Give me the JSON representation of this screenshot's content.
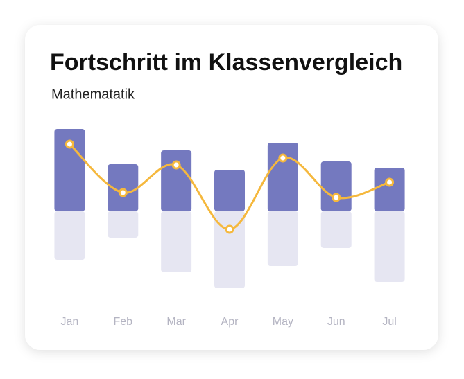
{
  "chart_data": {
    "type": "bar",
    "title": "Fortschritt im Klassenvergleich",
    "subtitle": "Mathematatik",
    "categories": [
      "Jan",
      "Feb",
      "Mar",
      "Apr",
      "May",
      "Jun",
      "Jul"
    ],
    "series": [
      {
        "color": "#7479bf",
        "values": [
          119,
          68,
          88,
          60,
          99,
          72,
          63
        ]
      },
      {
        "color": "#e6e6f2",
        "values": [
          -70,
          -38,
          -88,
          -111,
          -79,
          -53,
          -102
        ]
      },
      {
        "type": "line",
        "color": "#f5b83d",
        "values": [
          97,
          27,
          67,
          -26,
          77,
          20,
          42
        ]
      }
    ],
    "ylim": [
      -130,
      130
    ]
  }
}
